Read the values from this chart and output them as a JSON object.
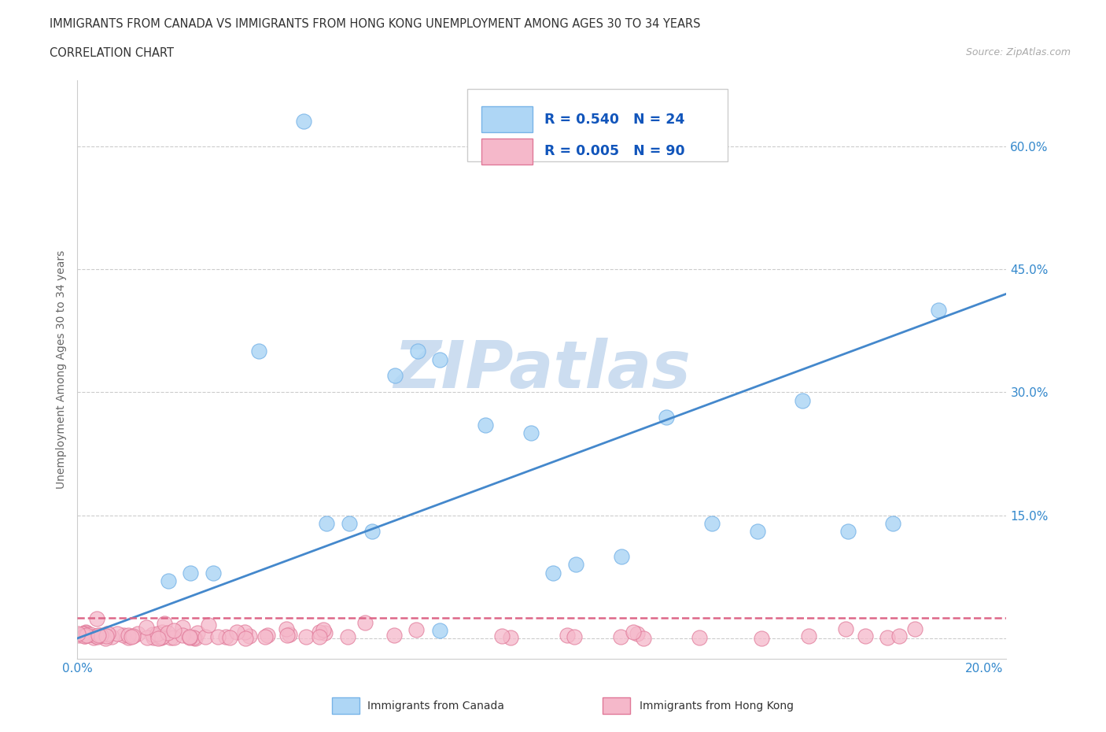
{
  "title_line1": "IMMIGRANTS FROM CANADA VS IMMIGRANTS FROM HONG KONG UNEMPLOYMENT AMONG AGES 30 TO 34 YEARS",
  "title_line2": "CORRELATION CHART",
  "source": "Source: ZipAtlas.com",
  "ylabel": "Unemployment Among Ages 30 to 34 years",
  "xlim": [
    0.0,
    0.205
  ],
  "ylim": [
    -0.025,
    0.68
  ],
  "yticks": [
    0.0,
    0.15,
    0.3,
    0.45,
    0.6
  ],
  "ytick_labels": [
    "",
    "15.0%",
    "30.0%",
    "45.0%",
    "60.0%"
  ],
  "xticks": [
    0.0,
    0.05,
    0.1,
    0.15,
    0.2
  ],
  "xtick_labels": [
    "0.0%",
    "",
    "",
    "",
    "20.0%"
  ],
  "legend_canada_R": "0.540",
  "legend_canada_N": "24",
  "legend_hk_R": "0.005",
  "legend_hk_N": "90",
  "canada_x": [
    0.025,
    0.03,
    0.04,
    0.055,
    0.06,
    0.065,
    0.07,
    0.075,
    0.08,
    0.09,
    0.1,
    0.105,
    0.11,
    0.12,
    0.13,
    0.14,
    0.15,
    0.16,
    0.17,
    0.18,
    0.19,
    0.02,
    0.05,
    0.08
  ],
  "canada_y": [
    0.08,
    0.08,
    0.35,
    0.14,
    0.14,
    0.13,
    0.32,
    0.35,
    0.34,
    0.26,
    0.25,
    0.08,
    0.09,
    0.1,
    0.27,
    0.14,
    0.13,
    0.29,
    0.13,
    0.14,
    0.4,
    0.07,
    0.63,
    0.01
  ],
  "canada_line_x": [
    0.0,
    0.205
  ],
  "canada_line_y": [
    0.0,
    0.42
  ],
  "hk_line_y": 0.025,
  "canada_color": "#aed6f5",
  "canada_edge_color": "#78b4e8",
  "hk_color": "#f5b8ca",
  "hk_edge_color": "#e07898",
  "canada_line_color": "#4488cc",
  "hk_line_color": "#dd6688",
  "watermark_color": "#ccddf0",
  "background_color": "#ffffff",
  "grid_color": "#cccccc",
  "grid_style": "--"
}
